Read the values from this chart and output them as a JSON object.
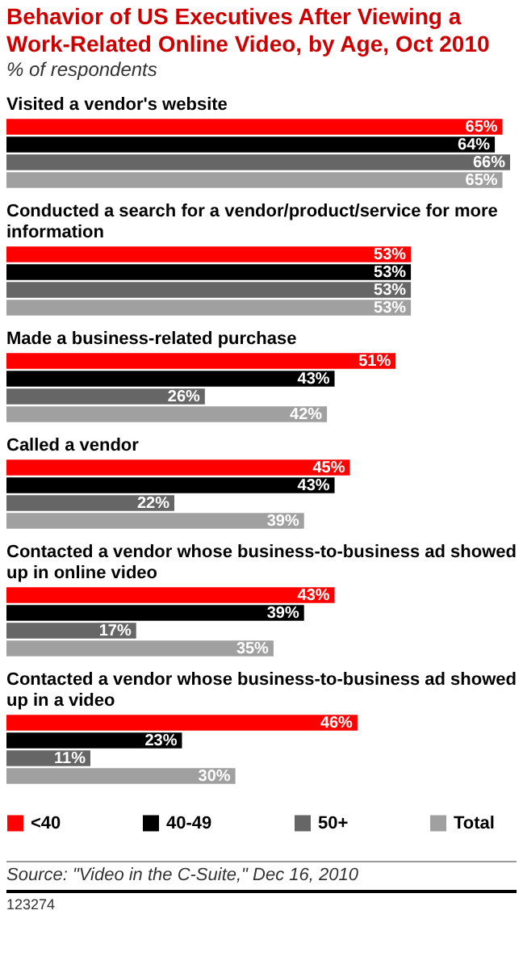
{
  "chart_data": {
    "type": "bar",
    "orientation": "horizontal",
    "title": "Behavior of US Executives After Viewing a Work-Related Online Video, by Age, Oct 2010",
    "subtitle": "% of respondents",
    "categories": [
      "Visited a vendor's website",
      "Conducted a search for a vendor/product/service for more information",
      "Made a business-related purchase",
      "Called a vendor",
      "Contacted a vendor whose business-to-business ad showed up in online video",
      "Contacted a vendor whose business-to-business ad showed up in a video"
    ],
    "series": [
      {
        "name": "<40",
        "color": "#ff0000",
        "values": [
          65,
          53,
          51,
          45,
          43,
          46
        ],
        "value_labels": [
          "65%",
          "53%",
          "51%",
          "45%",
          "43%",
          "46%"
        ]
      },
      {
        "name": "40-49",
        "color": "#000000",
        "values": [
          64,
          53,
          43,
          43,
          39,
          23
        ],
        "value_labels": [
          "64%",
          "53%",
          "43%",
          "43%",
          "39%",
          "23%"
        ]
      },
      {
        "name": "50+",
        "color": "#666666",
        "values": [
          66,
          53,
          26,
          22,
          17,
          11
        ],
        "value_labels": [
          "66%",
          "53%",
          "26%",
          "22%",
          "17%",
          "11%"
        ]
      },
      {
        "name": "Total",
        "color": "#a0a0a0",
        "values": [
          65,
          53,
          42,
          39,
          35,
          30
        ],
        "value_labels": [
          "65%",
          "53%",
          "42%",
          "39%",
          "35%",
          "30%"
        ]
      }
    ],
    "legend": "bottom",
    "annotations": [
      "Source: \"Video in the C-Suite,\" Dec 16, 2010",
      "123274"
    ]
  }
}
